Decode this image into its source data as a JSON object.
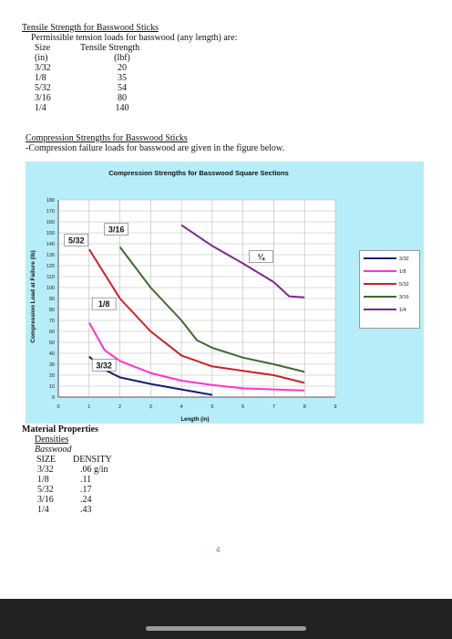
{
  "tension": {
    "title": "Tensile Strength for Basswood Sticks",
    "intro": "Permissible tension loads for basswood (any length) are:",
    "header_size": "Size",
    "header_strength": "Tensile Strength",
    "unit_size": "(in)",
    "unit_strength": "(lbf)",
    "rows": [
      {
        "size": "3/32",
        "value": "20"
      },
      {
        "size": "1/8",
        "value": "35"
      },
      {
        "size": "5/32",
        "value": "54"
      },
      {
        "size": "3/16",
        "value": "80"
      },
      {
        "size": "1/4",
        "value": "140"
      }
    ]
  },
  "compression": {
    "title": "Compression Strengths for Basswood Sticks",
    "intro": "-Compression failure loads for basswood are given in the figure below."
  },
  "chart_data": {
    "type": "line",
    "title": "Compression Strengths for Basswood Square Sections",
    "xlabel": "Length (in)",
    "ylabel": "Compression Load at Failure (lb)",
    "xlim": [
      0,
      9
    ],
    "ylim": [
      0,
      180
    ],
    "x_ticks": [
      "0",
      "1",
      "2",
      "3",
      "4",
      "5",
      "6",
      "7",
      "8",
      "9"
    ],
    "y_ticks": [
      "0",
      "10",
      "20",
      "30",
      "40",
      "50",
      "60",
      "70",
      "80",
      "90",
      "100",
      "110",
      "120",
      "130",
      "140",
      "150",
      "160",
      "170",
      "180"
    ],
    "grid": true,
    "legend_position": "right",
    "series": [
      {
        "name": "3/32",
        "label": "3/32",
        "color": "#1a1a7a",
        "points": [
          [
            1,
            37
          ],
          [
            1.5,
            25
          ],
          [
            2,
            18
          ],
          [
            3,
            12
          ],
          [
            4,
            7
          ],
          [
            5,
            2
          ]
        ]
      },
      {
        "name": "1/8",
        "label": "1/8",
        "color": "#ff33cc",
        "points": [
          [
            1,
            68
          ],
          [
            1.5,
            43
          ],
          [
            2,
            33
          ],
          [
            3,
            22
          ],
          [
            4,
            15
          ],
          [
            5,
            11
          ],
          [
            6,
            8
          ],
          [
            7,
            7
          ],
          [
            8,
            6
          ]
        ]
      },
      {
        "name": "5/32",
        "label": "5/32",
        "color": "#cc2222",
        "points": [
          [
            1,
            135
          ],
          [
            2,
            90
          ],
          [
            3,
            60
          ],
          [
            4,
            38
          ],
          [
            5,
            28
          ],
          [
            6,
            24
          ],
          [
            7,
            20
          ],
          [
            8,
            13
          ]
        ]
      },
      {
        "name": "3/16",
        "label": "3/16",
        "color": "#3d6b2e",
        "points": [
          [
            2,
            137
          ],
          [
            3,
            100
          ],
          [
            4,
            70
          ],
          [
            4.5,
            52
          ],
          [
            5,
            45
          ],
          [
            6,
            36
          ],
          [
            7,
            30
          ],
          [
            8,
            23
          ]
        ]
      },
      {
        "name": "1/4",
        "label": "¼",
        "color": "#7b2a8f",
        "points": [
          [
            4,
            157
          ],
          [
            5,
            138
          ],
          [
            6,
            122
          ],
          [
            7,
            105
          ],
          [
            7.5,
            92
          ],
          [
            8,
            91
          ]
        ]
      }
    ],
    "legend_entries": [
      "3/32",
      "1/8",
      "5/32",
      "3/16",
      "1/4"
    ]
  },
  "material": {
    "title": "Material Properties",
    "densities": "Densities",
    "basswood": "Basswood",
    "header_size": "SIZE",
    "header_density": "DENSITY",
    "rows": [
      {
        "size": "3/32",
        "value": ".06 g/in"
      },
      {
        "size": "1/8",
        "value": ".11"
      },
      {
        "size": "5/32",
        "value": ".17"
      },
      {
        "size": "3/16",
        "value": ".24"
      },
      {
        "size": "1/4",
        "value": ".43"
      }
    ]
  },
  "page_number": "4"
}
